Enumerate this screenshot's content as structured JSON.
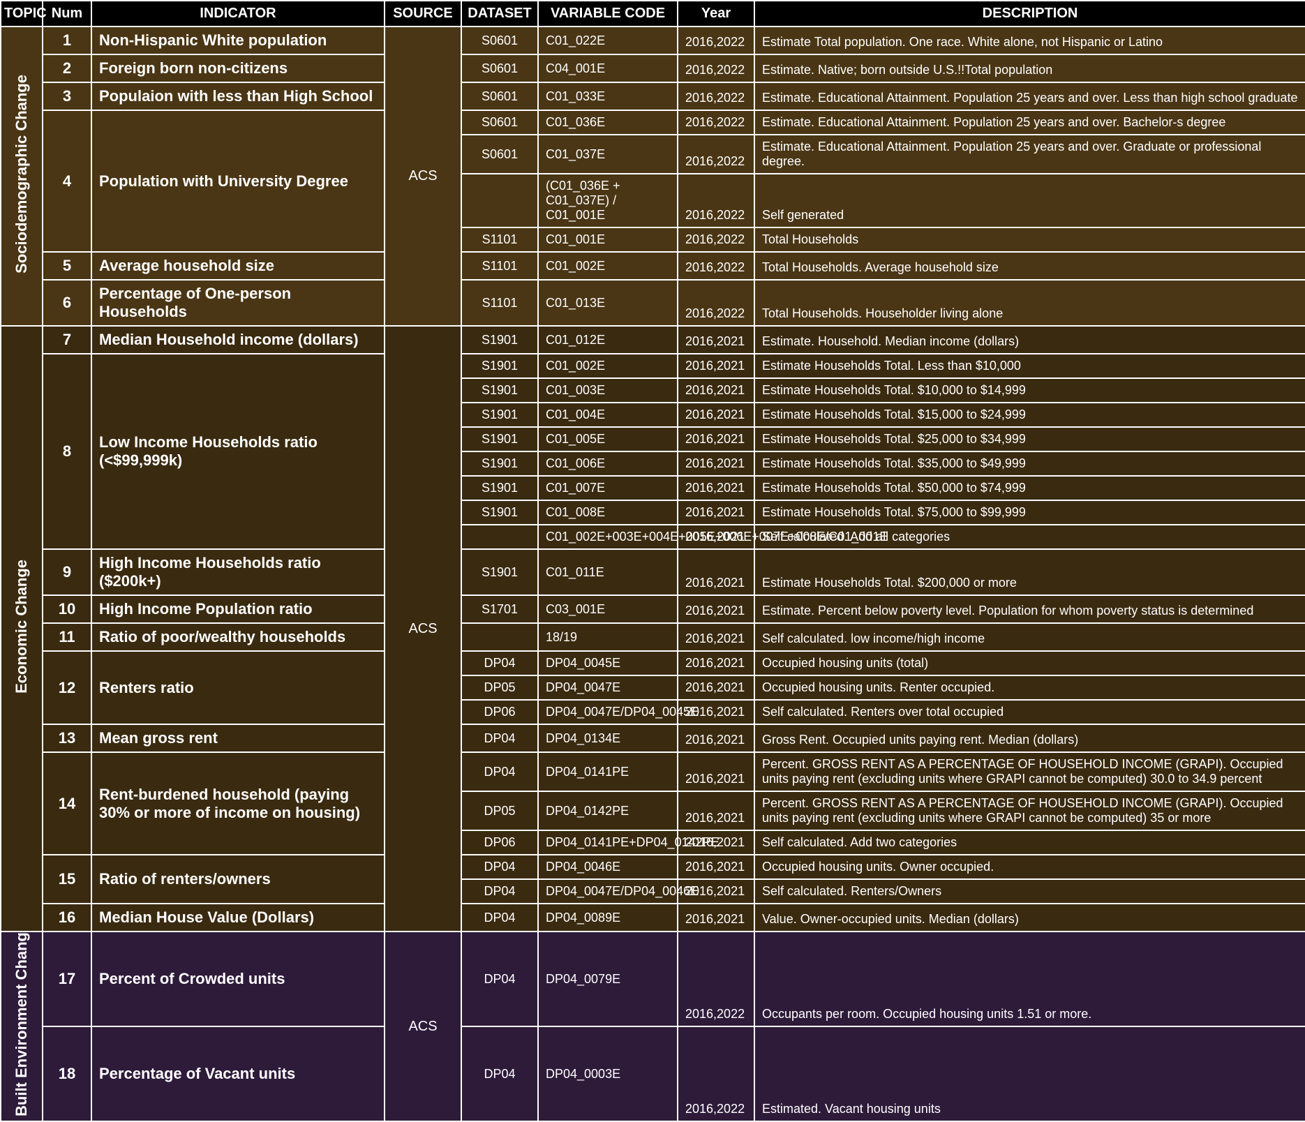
{
  "headers": {
    "topic": "TOPIC",
    "num": "Num",
    "indicator": "INDICATOR",
    "source": "SOURCE",
    "dataset": "DATASET",
    "varcode": "VARIABLE CODE",
    "year": "Year",
    "desc": "DESCRIPTION"
  },
  "sections": [
    {
      "topic": "Sociodemographic Change",
      "bg": "bg1",
      "source": "ACS",
      "indicators": [
        {
          "num": "1",
          "label": "Non-Hispanic White population",
          "rows": [
            {
              "dataset": "S0601",
              "var": "C01_022E",
              "year": "2016,2022",
              "desc": "Estimate Total population. One race. White alone, not Hispanic or Latino"
            }
          ]
        },
        {
          "num": "2",
          "label": "Foreign born non-citizens",
          "rows": [
            {
              "dataset": "S0601",
              "var": "C04_001E",
              "year": "2016,2022",
              "desc": "Estimate. Native; born outside U.S.!!Total population"
            }
          ]
        },
        {
          "num": "3",
          "label": "Populaion with less than High School",
          "rows": [
            {
              "dataset": "S0601",
              "var": "C01_033E",
              "year": "2016,2022",
              "desc": "Estimate. Educational Attainment. Population 25 years and over. Less than high school graduate"
            }
          ]
        },
        {
          "num": "4",
          "label": "Population with University Degree",
          "rows": [
            {
              "dataset": "S0601",
              "var": "C01_036E",
              "year": "2016,2022",
              "desc": "Estimate. Educational Attainment. Population 25 years and over. Bachelor-s degree"
            },
            {
              "dataset": "S0601",
              "var": "C01_037E",
              "year": "2016,2022",
              "desc": "Estimate. Educational Attainment. Population 25 years and over. Graduate or professional degree."
            },
            {
              "dataset": "",
              "var": "(C01_036E + C01_037E) / C01_001E",
              "year": "2016,2022",
              "desc": "Self generated"
            },
            {
              "dataset": "S1101",
              "var": "C01_001E",
              "year": "2016,2022",
              "desc": "Total Households"
            }
          ]
        },
        {
          "num": "5",
          "label": "Average household size",
          "rows": [
            {
              "dataset": "S1101",
              "var": "C01_002E",
              "year": "2016,2022",
              "desc": "Total Households. Average household size"
            }
          ]
        },
        {
          "num": "6",
          "label": "Percentage of One-person Households",
          "rows": [
            {
              "dataset": "S1101",
              "var": "C01_013E",
              "year": "2016,2022",
              "desc": "Total Households. Householder living alone"
            }
          ]
        }
      ]
    },
    {
      "topic": "Economic  Change",
      "bg": "bg2",
      "source": "ACS",
      "indicators": [
        {
          "num": "7",
          "label": "Median Household income (dollars)",
          "rows": [
            {
              "dataset": "S1901",
              "var": "C01_012E",
              "year": "2016,2021",
              "desc": "Estimate. Household. Median income (dollars)"
            }
          ]
        },
        {
          "num": "8",
          "label": "Low Income Households ratio (<$99,999k)",
          "rows": [
            {
              "dataset": "S1901",
              "var": "C01_002E",
              "year": "2016,2021",
              "desc": "Estimate Households Total. Less than $10,000"
            },
            {
              "dataset": "S1901",
              "var": "C01_003E",
              "year": "2016,2021",
              "desc": "Estimate Households Total. $10,000 to $14,999"
            },
            {
              "dataset": "S1901",
              "var": "C01_004E",
              "year": "2016,2021",
              "desc": "Estimate Households Total. $15,000 to $24,999"
            },
            {
              "dataset": "S1901",
              "var": "C01_005E",
              "year": "2016,2021",
              "desc": "Estimate Households Total. $25,000 to $34,999"
            },
            {
              "dataset": "S1901",
              "var": "C01_006E",
              "year": "2016,2021",
              "desc": "Estimate Households Total. $35,000 to $49,999"
            },
            {
              "dataset": "S1901",
              "var": "C01_007E",
              "year": "2016,2021",
              "desc": "Estimate Households Total. $50,000 to $74,999"
            },
            {
              "dataset": "S1901",
              "var": "C01_008E",
              "year": "2016,2021",
              "desc": "Estimate Households Total. $75,000 to $99,999"
            },
            {
              "dataset": "",
              "var": "C01_002E+003E+004E+005E+006E+007E+008E/C01_001E",
              "year": "2016,2021",
              "desc": "Self calculated. Add all categories"
            }
          ]
        },
        {
          "num": "9",
          "label": "High Income Households ratio ($200k+)",
          "rows": [
            {
              "dataset": "S1901",
              "var": "C01_011E",
              "year": "2016,2021",
              "desc": "Estimate Households Total. $200,000 or more"
            }
          ]
        },
        {
          "num": "10",
          "label": "High Income Population ratio",
          "rows": [
            {
              "dataset": "S1701",
              "var": "C03_001E",
              "year": "2016,2021",
              "desc": "Estimate. Percent below poverty level. Population for whom poverty status is determined"
            }
          ]
        },
        {
          "num": "11",
          "label": "Ratio of poor/wealthy households",
          "rows": [
            {
              "dataset": "",
              "var": "18/19",
              "year": "2016,2021",
              "desc": "Self calculated. low income/high income"
            }
          ]
        },
        {
          "num": "12",
          "label": "Renters ratio",
          "rows": [
            {
              "dataset": "DP04",
              "var": "DP04_0045E",
              "year": "2016,2021",
              "desc": "Occupied housing units (total)"
            },
            {
              "dataset": "DP05",
              "var": "DP04_0047E",
              "year": "2016,2021",
              "desc": "Occupied housing units. Renter occupied."
            },
            {
              "dataset": "DP06",
              "var": "DP04_0047E/DP04_0045E",
              "year": "2016,2021",
              "desc": "Self calculated. Renters over total occupied"
            }
          ]
        },
        {
          "num": "13",
          "label": "Mean gross rent",
          "rows": [
            {
              "dataset": "DP04",
              "var": "DP04_0134E",
              "year": "2016,2021",
              "desc": "Gross Rent. Occupied units paying rent. Median (dollars)"
            }
          ]
        },
        {
          "num": "14",
          "label": "Rent-burdened household (paying 30% or more of income on housing)",
          "rows": [
            {
              "dataset": "DP04",
              "var": "DP04_0141PE",
              "year": "2016,2021",
              "desc": "Percent. GROSS RENT AS A PERCENTAGE OF HOUSEHOLD INCOME (GRAPI). Occupied units paying rent (excluding units where GRAPI cannot be computed) 30.0 to 34.9 percent"
            },
            {
              "dataset": "DP05",
              "var": "DP04_0142PE",
              "year": "2016,2021",
              "desc": "Percent. GROSS RENT AS A PERCENTAGE OF HOUSEHOLD INCOME (GRAPI). Occupied units paying rent (excluding units where GRAPI cannot be computed) 35 or more"
            },
            {
              "dataset": "DP06",
              "var": "DP04_0141PE+DP04_0142PE",
              "year": "2016,2021",
              "desc": "Self calculated. Add two categories"
            }
          ]
        },
        {
          "num": "15",
          "label": "Ratio of renters/owners",
          "rows": [
            {
              "dataset": "DP04",
              "var": "DP04_0046E",
              "year": "2016,2021",
              "desc": "Occupied housing units. Owner occupied."
            },
            {
              "dataset": "DP04",
              "var": "DP04_0047E/DP04_0046E",
              "year": "2016,2021",
              "desc": "Self calculated. Renters/Owners"
            }
          ]
        },
        {
          "num": "16",
          "label": "Median House Value (Dollars)",
          "rows": [
            {
              "dataset": "DP04",
              "var": "DP04_0089E",
              "year": "2016,2021",
              "desc": "Value. Owner-occupied units. Median (dollars)"
            }
          ]
        }
      ]
    },
    {
      "topic": "Built Environment Chang",
      "bg": "bg3",
      "source": "ACS",
      "indicators": [
        {
          "num": "17",
          "label": "Percent of Crowded units",
          "rows": [
            {
              "dataset": "DP04",
              "var": "DP04_0079E",
              "year": "2016,2022",
              "desc": "Occupants per room. Occupied housing units 1.51 or more."
            }
          ]
        },
        {
          "num": "18",
          "label": "Percentage of Vacant units",
          "rows": [
            {
              "dataset": "DP04",
              "var": "DP04_0003E",
              "year": "2016,2022",
              "desc": "Estimated. Vacant housing units"
            }
          ]
        }
      ]
    }
  ]
}
